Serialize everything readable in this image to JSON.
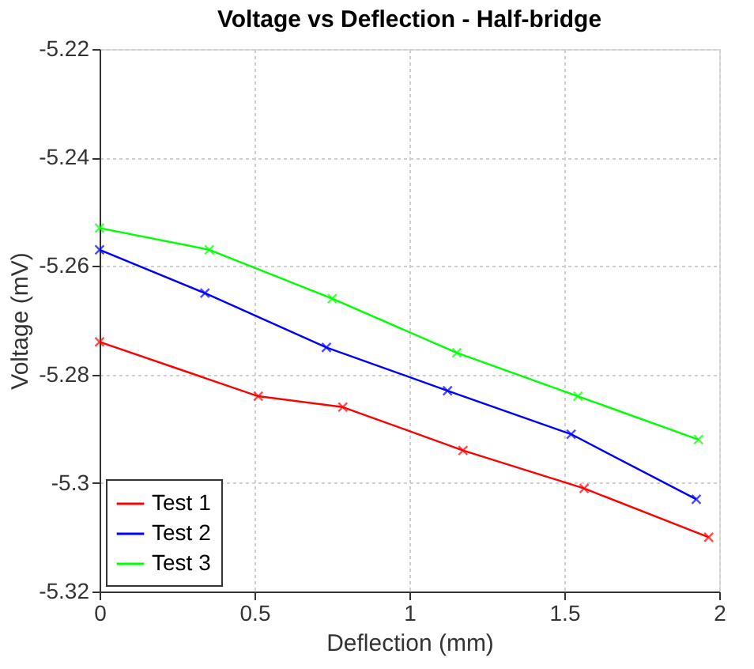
{
  "chart_data": {
    "type": "line",
    "title": "Voltage vs Deflection - Half-bridge",
    "xlabel": "Deflection (mm)",
    "ylabel": "Voltage (mV)",
    "xlim": [
      0,
      2
    ],
    "xticks": [
      0,
      0.5,
      1,
      1.5,
      2
    ],
    "ylim": [
      -5.32,
      -5.22
    ],
    "yticks": [
      -5.32,
      -5.3,
      -5.28,
      -5.26,
      -5.24,
      -5.22
    ],
    "grid": true,
    "legend": "bottom left",
    "marker": "cross",
    "line_style": "solid",
    "series": [
      {
        "name": "Test 1",
        "color": "#ff0000",
        "x": [
          0,
          0.512,
          0.785,
          1.173,
          1.564,
          1.966
        ],
        "values": [
          -5.274,
          -5.284,
          -5.286,
          -5.294,
          -5.301,
          -5.31
        ]
      },
      {
        "name": "Test 2",
        "color": "#0000ff",
        "x": [
          0,
          0.34,
          0.732,
          1.123,
          1.522,
          1.926
        ],
        "values": [
          -5.257,
          -5.265,
          -5.275,
          -5.283,
          -5.291,
          -5.303
        ]
      },
      {
        "name": "Test 3",
        "color": "#00ff00",
        "x": [
          0,
          0.354,
          0.751,
          1.153,
          1.544,
          1.933
        ],
        "values": [
          -5.253,
          -5.257,
          -5.266,
          -5.276,
          -5.284,
          -5.292
        ]
      }
    ]
  }
}
